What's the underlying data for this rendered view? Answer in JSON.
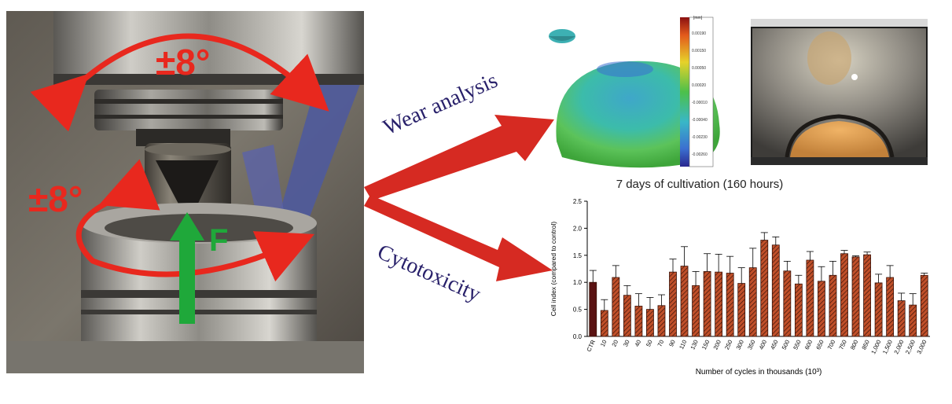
{
  "photo": {
    "top_angle": "±8°",
    "side_angle": "±8°",
    "force_label": "F"
  },
  "flow": {
    "wear_label": "Wear analysis",
    "cyto_label": "Cytotoxicity"
  },
  "wear_scale": {
    "unit": "[mm]",
    "ticks": [
      "0.00190",
      "0.00150",
      "0.00050",
      "0.00020",
      "-0.00010",
      "-0.00040",
      "-0.00230",
      "-0.00260"
    ]
  },
  "cultivation_label": "7 days of cultivation (160 hours)",
  "chart_data": {
    "type": "bar",
    "ylabel": "Cell index (compared to control)",
    "xlabel": "Number of cycles in thousands (10³)",
    "ylim": [
      0,
      2.5
    ],
    "yticks": [
      0.0,
      0.5,
      1.0,
      1.5,
      2.0,
      2.5
    ],
    "categories": [
      "CTR",
      "10",
      "20",
      "30",
      "40",
      "50",
      "70",
      "90",
      "110",
      "130",
      "150",
      "200",
      "250",
      "300",
      "350",
      "400",
      "450",
      "500",
      "550",
      "600",
      "650",
      "700",
      "750",
      "800",
      "850",
      "1,000",
      "1,500",
      "2,000",
      "2,500",
      "3,000"
    ],
    "values": [
      1.0,
      0.48,
      1.09,
      0.76,
      0.56,
      0.5,
      0.57,
      1.19,
      1.3,
      0.94,
      1.2,
      1.19,
      1.17,
      0.98,
      1.27,
      1.78,
      1.69,
      1.21,
      0.97,
      1.41,
      1.02,
      1.13,
      1.53,
      1.47,
      1.51,
      0.99,
      1.09,
      0.66,
      0.58,
      1.13
    ],
    "errors": [
      0.22,
      0.2,
      0.22,
      0.18,
      0.23,
      0.22,
      0.2,
      0.24,
      0.36,
      0.26,
      0.33,
      0.33,
      0.31,
      0.29,
      0.36,
      0.14,
      0.15,
      0.18,
      0.16,
      0.16,
      0.27,
      0.26,
      0.06,
      0.02,
      0.05,
      0.16,
      0.22,
      0.14,
      0.21,
      0.04
    ],
    "colors": {
      "control": "#5a1212",
      "bars": "#c0502a",
      "edge": "#3a1208"
    }
  }
}
